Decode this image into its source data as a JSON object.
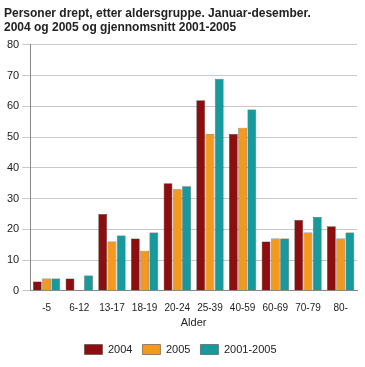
{
  "chart_data": {
    "type": "bar",
    "title": [
      "Personer drept, etter aldersgruppe. Januar-desember.",
      "2004 og 2005 og gjennomsnitt 2001-2005"
    ],
    "x_label": "Alder",
    "categories": [
      "-5",
      "6-12",
      "13-17",
      "18-19",
      "20-24",
      "25-39",
      "40-59",
      "60-69",
      "70-79",
      "80-"
    ],
    "series": [
      {
        "name": "2004",
        "color": "#8c0e0e",
        "values": [
          3,
          4,
          25,
          17,
          35,
          62,
          51,
          16,
          23,
          21
        ]
      },
      {
        "name": "2005",
        "color": "#f39a1e",
        "values": [
          4,
          0,
          16,
          13,
          33,
          51,
          53,
          17,
          19,
          17
        ]
      },
      {
        "name": "2001-2005",
        "color": "#18999b",
        "values": [
          4,
          5,
          18,
          19,
          34,
          69,
          59,
          17,
          24,
          19
        ]
      }
    ],
    "ylim": [
      0,
      80
    ],
    "yticks": [
      0,
      10,
      20,
      30,
      40,
      50,
      60,
      70,
      80
    ],
    "grid": true,
    "legend": "bottom"
  }
}
